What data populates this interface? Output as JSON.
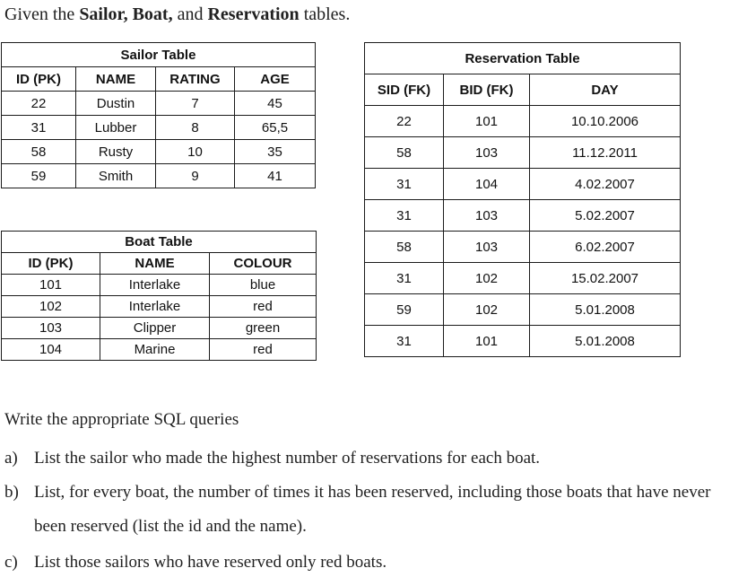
{
  "intro": {
    "prefix": "Given the ",
    "bold1": "Sailor, Boat,",
    "middle": " and ",
    "bold2": "Reservation",
    "suffix": " tables."
  },
  "tables": {
    "sailor": {
      "title": "Sailor Table",
      "headers": [
        "ID (PK)",
        "NAME",
        "RATING",
        "AGE"
      ],
      "rows": [
        [
          "22",
          "Dustin",
          "7",
          "45"
        ],
        [
          "31",
          "Lubber",
          "8",
          "65,5"
        ],
        [
          "58",
          "Rusty",
          "10",
          "35"
        ],
        [
          "59",
          "Smith",
          "9",
          "41"
        ]
      ]
    },
    "boat": {
      "title": "Boat Table",
      "headers": [
        "ID (PK)",
        "NAME",
        "COLOUR"
      ],
      "rows": [
        [
          "101",
          "Interlake",
          "blue"
        ],
        [
          "102",
          "Interlake",
          "red"
        ],
        [
          "103",
          "Clipper",
          "green"
        ],
        [
          "104",
          "Marine",
          "red"
        ]
      ]
    },
    "reservation": {
      "title": "Reservation Table",
      "headers": [
        "SID (FK)",
        "BID (FK)",
        "DAY"
      ],
      "rows": [
        [
          "22",
          "101",
          "10.10.2006"
        ],
        [
          "58",
          "103",
          "11.12.2011"
        ],
        [
          "31",
          "104",
          "4.02.2007"
        ],
        [
          "31",
          "103",
          "5.02.2007"
        ],
        [
          "58",
          "103",
          "6.02.2007"
        ],
        [
          "31",
          "102",
          "15.02.2007"
        ],
        [
          "59",
          "102",
          "5.01.2008"
        ],
        [
          "31",
          "101",
          "5.01.2008"
        ]
      ]
    }
  },
  "questions": {
    "heading": "Write the appropriate SQL queries",
    "items": [
      {
        "label": "a)",
        "text": "List the sailor who made the highest number of reservations for each boat."
      },
      {
        "label": "b)",
        "text": "List, for every boat, the number of times it has been reserved, including those boats that have never been reserved (list the id and the name)."
      },
      {
        "label": "c)",
        "text": "List those sailors who have reserved only red boats."
      }
    ]
  }
}
